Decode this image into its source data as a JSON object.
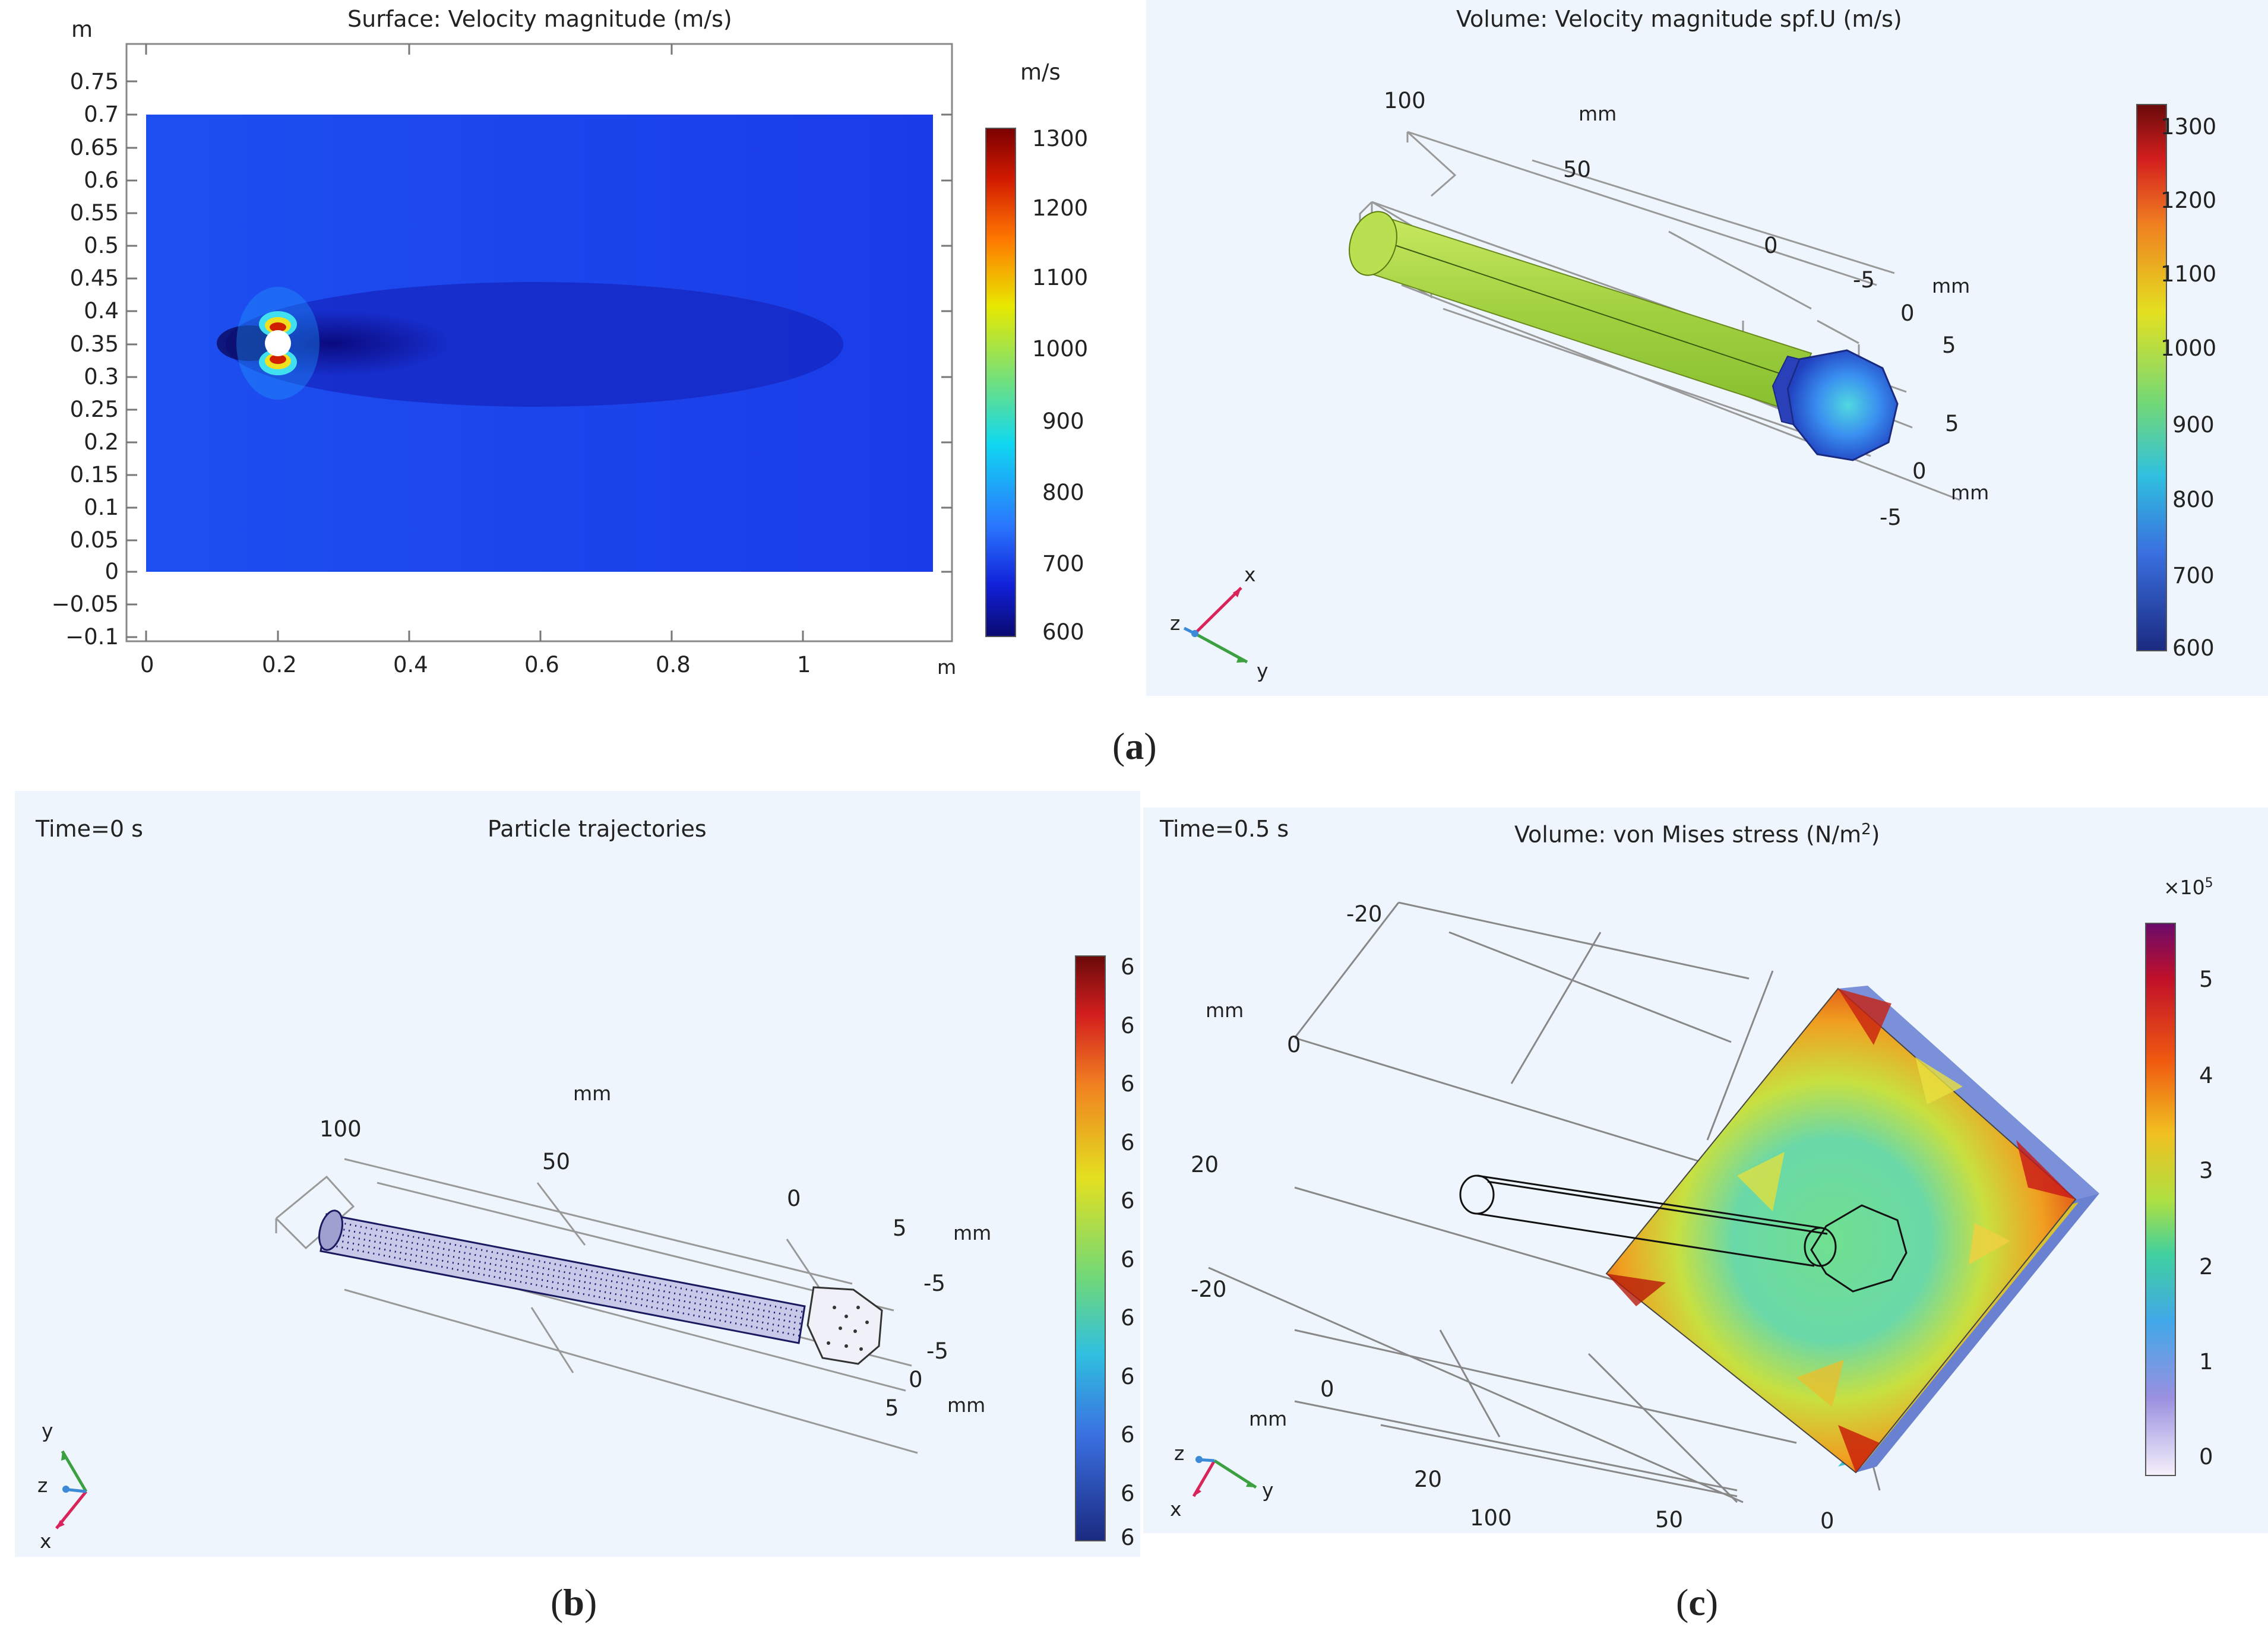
{
  "panel_a_left": {
    "title": "Surface: Velocity magnitude (m/s)",
    "y_unit": "m",
    "x_unit": "m",
    "y_ticks": [
      "0.75",
      "0.7",
      "0.65",
      "0.6",
      "0.55",
      "0.5",
      "0.45",
      "0.4",
      "0.35",
      "0.3",
      "0.25",
      "0.2",
      "0.15",
      "0.1",
      "0.05",
      "0",
      "−0.05",
      "−0.1"
    ],
    "x_ticks": [
      "0",
      "0.2",
      "0.4",
      "0.6",
      "0.8",
      "1"
    ],
    "colorbar_unit": "m/s",
    "colorbar_ticks": [
      "1300",
      "1200",
      "1100",
      "1000",
      "900",
      "800",
      "700",
      "600"
    ]
  },
  "panel_a_right": {
    "title": "Volume: Velocity magnitude spf.U (m/s)",
    "colorbar_ticks": [
      "1300",
      "1200",
      "1100",
      "1000",
      "900",
      "800",
      "700",
      "600"
    ],
    "axis_labels": {
      "l100": "100",
      "lmm1": "mm",
      "l50": "50",
      "l0a": "0",
      "lm5a": "-5",
      "lmm2": "mm",
      "l0b": "0",
      "l5a": "5",
      "l5b": "5",
      "l0c": "0",
      "lmm3": "mm",
      "lm5b": "-5"
    },
    "triad": {
      "x": "x",
      "y": "y",
      "z": "z"
    }
  },
  "panel_b": {
    "time": "Time=0 s",
    "title": "Particle trajectories",
    "colorbar_ticks": [
      "6",
      "6",
      "6",
      "6",
      "6",
      "6",
      "6",
      "6",
      "6",
      "6",
      "6"
    ],
    "axis_labels": {
      "lmm1": "mm",
      "l100": "100",
      "l50": "50",
      "l0a": "0",
      "l5a": "5",
      "lmm2": "mm",
      "lm5a": "-5",
      "lm5b": "-5",
      "l0b": "0",
      "l5b": "5",
      "lmm3": "mm"
    },
    "triad": {
      "x": "x",
      "y": "y",
      "z": "z"
    }
  },
  "panel_c": {
    "time": "Time=0.5 s",
    "title_main": "Volume: von Mises stress (N/m",
    "title_sup": "2",
    "title_end": ")",
    "multiplier_base": "×10",
    "multiplier_exp": "5",
    "colorbar_ticks": [
      "5",
      "4",
      "3",
      "2",
      "1",
      "0"
    ],
    "axis_labels": {
      "lm20a": "-20",
      "lmm1": "mm",
      "l0a": "0",
      "l20a": "20",
      "lm20b": "-20",
      "l0b": "0",
      "lmm2": "mm",
      "l20b": "20",
      "l100": "100",
      "l50": "50",
      "l0c": "0"
    },
    "triad": {
      "x": "x",
      "y": "y",
      "z": "z"
    }
  },
  "captions": {
    "a_open": "(",
    "a": "a",
    "a_close": ")",
    "b_open": "(",
    "b": "b",
    "b_close": ")",
    "c_open": "(",
    "c": "c",
    "c_close": ")"
  }
}
